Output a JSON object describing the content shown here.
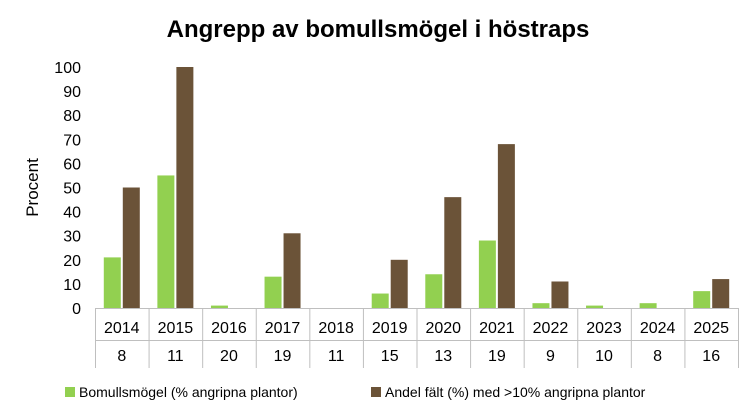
{
  "chart_data": {
    "type": "bar",
    "title": "Angrepp av bomullsmögel i höstraps",
    "ylabel": "Procent",
    "xlabel": "",
    "ylim": [
      0,
      100
    ],
    "yticks": [
      0,
      10,
      20,
      30,
      40,
      50,
      60,
      70,
      80,
      90,
      100
    ],
    "categories": [
      "2014",
      "2015",
      "2016",
      "2017",
      "2018",
      "2019",
      "2020",
      "2021",
      "2022",
      "2023",
      "2024",
      "2025"
    ],
    "category_counts": [
      "8",
      "11",
      "20",
      "19",
      "11",
      "15",
      "13",
      "19",
      "9",
      "10",
      "8",
      "16"
    ],
    "series": [
      {
        "name": "Bomullsmögel (% angripna plantor)",
        "color": "#92d050",
        "values": [
          21,
          55,
          1,
          13,
          0,
          6,
          14,
          28,
          2,
          1,
          2,
          7
        ]
      },
      {
        "name": "Andel fält (%) med >10% angripna plantor",
        "color": "#6b5338",
        "values": [
          50,
          100,
          0,
          31,
          0,
          20,
          46,
          68,
          11,
          0,
          0,
          12
        ]
      }
    ],
    "grid": false,
    "legend_position": "bottom"
  }
}
